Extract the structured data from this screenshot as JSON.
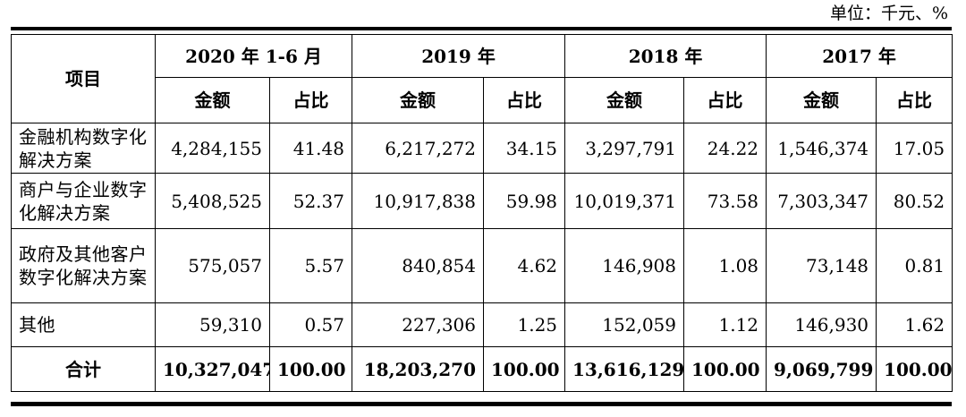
{
  "unit_note": "单位：千元、%",
  "header": {
    "project": "项目",
    "years": [
      "2020 年 1-6 月",
      "2019 年",
      "2018 年",
      "2017 年"
    ],
    "amount": "金额",
    "ratio": "占比"
  },
  "rows": [
    {
      "name": "金融机构数字化解决方案",
      "cells": [
        "4,284,155",
        "41.48",
        "6,217,272",
        "34.15",
        "3,297,791",
        "24.22",
        "1,546,374",
        "17.05"
      ]
    },
    {
      "name": "商户与企业数字化解决方案",
      "cells": [
        "5,408,525",
        "52.37",
        "10,917,838",
        "59.98",
        "10,019,371",
        "73.58",
        "7,303,347",
        "80.52"
      ]
    },
    {
      "name": "政府及其他客户数字化解决方案",
      "cells": [
        "575,057",
        "5.57",
        "840,854",
        "4.62",
        "146,908",
        "1.08",
        "73,148",
        "0.81"
      ]
    },
    {
      "name": "其他",
      "cells": [
        "59,310",
        "0.57",
        "227,306",
        "1.25",
        "152,059",
        "1.12",
        "146,930",
        "1.62"
      ]
    }
  ],
  "total": {
    "name": "合计",
    "cells": [
      "10,327,047",
      "100.00",
      "18,203,270",
      "100.00",
      "13,616,129",
      "100.00",
      "9,069,799",
      "100.00"
    ]
  }
}
